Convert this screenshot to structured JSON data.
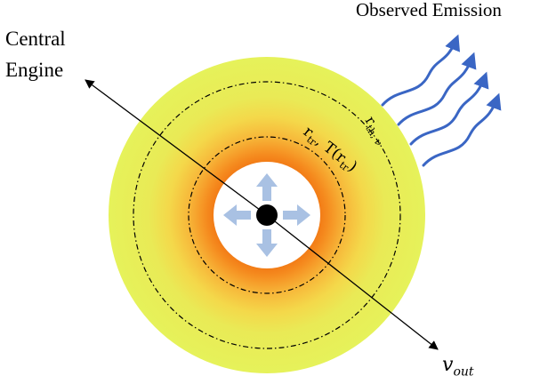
{
  "labels": {
    "central_engine_line1": "Central",
    "central_engine_line2": "Engine",
    "observed_emission": "Observed Emission",
    "r_th_nu": "r",
    "r_th_nu_sub": "th, ν",
    "r_tr_label": "r",
    "r_tr_sub": "tr",
    "temp_label": ",  T(r",
    "temp_sub": "tr",
    "temp_close": ")",
    "v_out": "v",
    "v_out_sub": "out"
  },
  "colors": {
    "outer_yellow": "#e6f25a",
    "mid_yellow": "#f4e24a",
    "orange": "#f58a1e",
    "deep_orange": "#f07010",
    "inner_white": "#ffffff",
    "core": "#000000",
    "arrows_light_blue": "#a9c1e3",
    "emission_blue": "#3a66c4"
  },
  "icons": {
    "expansion_arrows": "arrow-four-directions-icon",
    "emission_waves": "wavy-arrow-icon"
  }
}
